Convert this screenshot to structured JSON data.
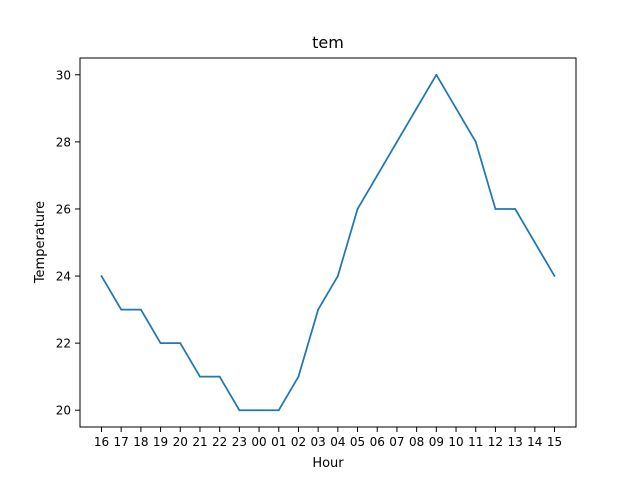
{
  "chart_data": {
    "type": "line",
    "title": "tem",
    "xlabel": "Hour",
    "ylabel": "Temperature",
    "categories": [
      "16",
      "17",
      "18",
      "19",
      "20",
      "21",
      "22",
      "23",
      "00",
      "01",
      "02",
      "03",
      "04",
      "05",
      "06",
      "07",
      "08",
      "09",
      "10",
      "11",
      "12",
      "13",
      "14",
      "15"
    ],
    "series": [
      {
        "values": [
          24,
          23,
          23,
          22,
          22,
          21,
          21,
          20,
          20,
          20,
          21,
          23,
          24,
          26,
          27,
          28,
          29,
          30,
          29,
          28,
          26,
          26,
          25,
          24
        ]
      }
    ],
    "ylim": [
      19.5,
      30.5
    ],
    "yticks": [
      20,
      22,
      24,
      26,
      28,
      30
    ],
    "grid": false,
    "legend": "none",
    "line_color": "#1f77b4"
  }
}
